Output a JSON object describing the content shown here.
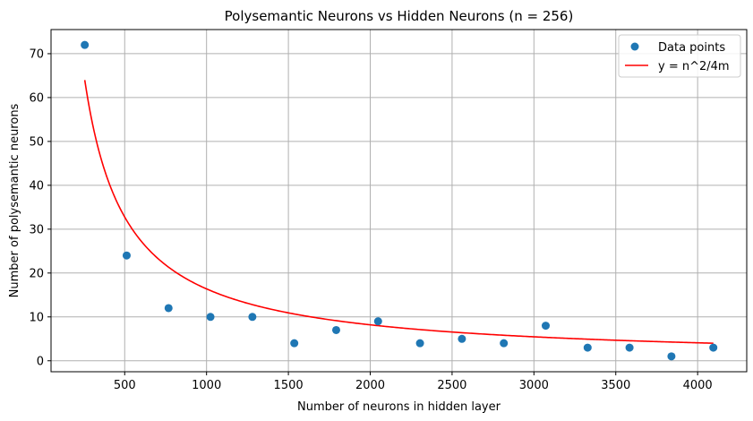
{
  "chart_data": {
    "type": "scatter",
    "title": "Polysemantic Neurons vs Hidden Neurons (n = 256)",
    "xlabel": "Number of neurons in hidden layer",
    "ylabel": "Number of polysemantic neurons",
    "xlim": [
      50,
      4300
    ],
    "ylim": [
      -2.5,
      75.5
    ],
    "xticks": [
      500,
      1000,
      1500,
      2000,
      2500,
      3000,
      3500,
      4000
    ],
    "yticks": [
      0,
      10,
      20,
      30,
      40,
      50,
      60,
      70
    ],
    "grid": true,
    "legend_position": "top-right",
    "colors": {
      "points": "#1f77b4",
      "curve": "#ff0000",
      "grid": "#b0b0b0"
    },
    "series": [
      {
        "name": "Data points",
        "kind": "scatter",
        "x": [
          256,
          512,
          768,
          1024,
          1280,
          1536,
          1792,
          2048,
          2304,
          2560,
          2816,
          3072,
          3328,
          3584,
          3840,
          4096
        ],
        "y": [
          72,
          24,
          12,
          10,
          10,
          4,
          7,
          9,
          4,
          5,
          4,
          8,
          3,
          3,
          1,
          3
        ]
      },
      {
        "name": "y = n^2/4m",
        "kind": "line",
        "n": 256,
        "x_range": [
          256,
          4096
        ]
      }
    ]
  }
}
